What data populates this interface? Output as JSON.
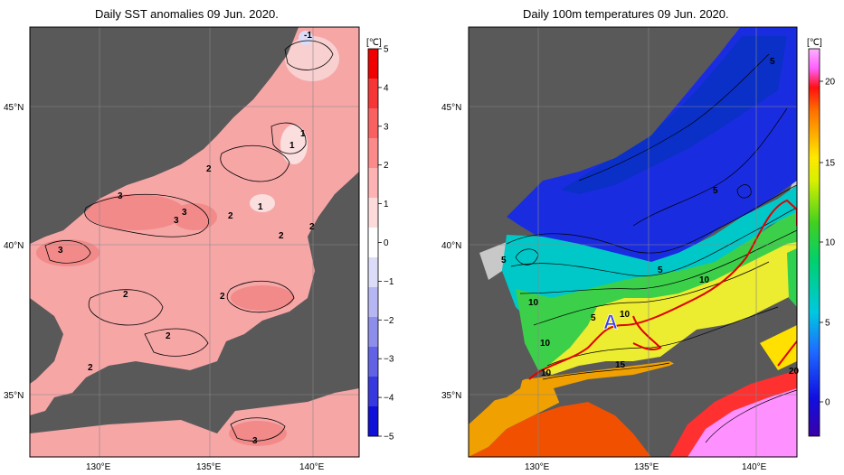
{
  "left_map": {
    "title": "Daily SST anomalies 09 Jun. 2020.",
    "colorbar": {
      "unit": "[℃]",
      "ticks": [
        "5",
        "4",
        "3",
        "2",
        "1",
        "0",
        "−1",
        "−2",
        "−3",
        "−4",
        "−5"
      ],
      "colors_top_to_bottom": [
        "#f00000",
        "#f63636",
        "#f96060",
        "#fb8a8a",
        "#fdb3b3",
        "#fedbdb",
        "#ffffff",
        "#dcdcf8",
        "#b6b6f2",
        "#8d8dec",
        "#6262e6",
        "#3838df",
        "#1010d8"
      ]
    },
    "lat_labels": [
      "45°N",
      "40°N",
      "35°N"
    ],
    "lon_labels": [
      "130°E",
      "135°E",
      "140°E"
    ],
    "contour_labels": [
      "-1",
      "1",
      "1",
      "1",
      "2",
      "2",
      "3",
      "3",
      "3",
      "2",
      "2",
      "3",
      "2",
      "2",
      "2",
      "2",
      "3"
    ]
  },
  "right_map": {
    "title": "Daily 100m temperatures 09 Jun. 2020.",
    "colorbar": {
      "unit": "[℃]",
      "ticks": [
        "20",
        "15",
        "10",
        "5",
        "0"
      ]
    },
    "lat_labels": [
      "45°N",
      "40°N",
      "35°N"
    ],
    "lon_labels": [
      "130°E",
      "135°E",
      "140°E"
    ],
    "contour_labels": [
      "5",
      "5",
      "5",
      "5",
      "10",
      "10",
      "5",
      "10",
      "10",
      "10",
      "15",
      "10",
      "20"
    ],
    "marker": "A",
    "marker_color": "#3b3bdc",
    "front_line_color": "#e00000"
  },
  "colors": {
    "land": "#595959",
    "ice_gray": "#c8c8c8",
    "sea_anom_pink": "#f7a6a6"
  }
}
